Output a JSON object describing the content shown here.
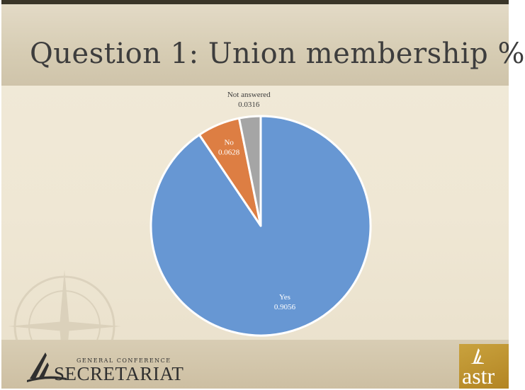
{
  "title": "Question 1: Union membership %",
  "chart_data": {
    "type": "pie",
    "title": "Question 1: Union membership %",
    "start_angle_deg": 0,
    "direction": "clockwise",
    "slices": [
      {
        "name": "Yes",
        "value": 0.9056,
        "label": "0.9056",
        "color": "#6797d3"
      },
      {
        "name": "No",
        "value": 0.0628,
        "label": "0.0628",
        "color": "#dd7e43"
      },
      {
        "name": "Not answered",
        "value": 0.0316,
        "label": "0.0316",
        "color": "#a5a5a5"
      }
    ],
    "label_color_inside": "#ffffff",
    "label_color_outside": "#3d3d3d"
  },
  "footer": {
    "logo_small": "GENERAL CONFERENCE",
    "logo_big": "SECRETARIAT",
    "badge": "astr"
  }
}
